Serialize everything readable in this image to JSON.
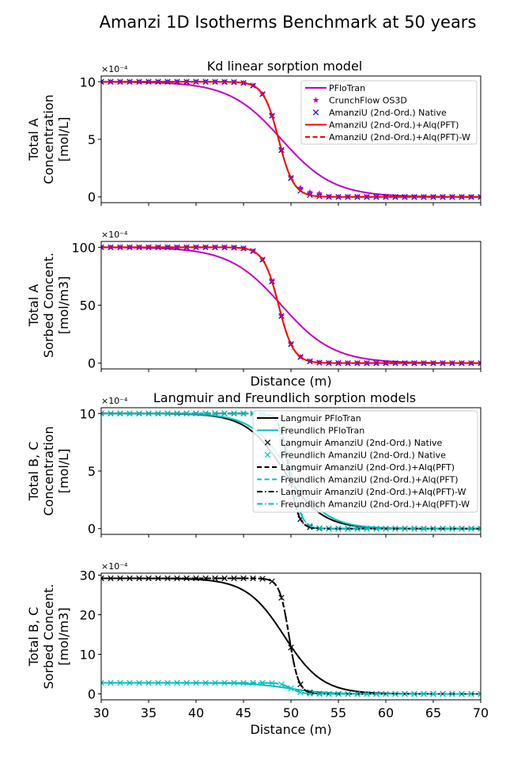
{
  "figure": {
    "suptitle": "Amanzi 1D Isotherms Benchmark at 50 years"
  },
  "chart_data": [
    {
      "type": "line",
      "title": "Kd linear sorption model",
      "ylabel": [
        "Total A",
        "Concentration",
        "[mol/L]"
      ],
      "xlabel": "",
      "exponent_label": "×10⁻⁴",
      "xlim": [
        30,
        70
      ],
      "ylim": [
        -0.5,
        10.5
      ],
      "yticks": [
        0,
        5,
        10
      ],
      "xticks": [
        30,
        35,
        40,
        45,
        50,
        55,
        60,
        65,
        70
      ],
      "show_xticklabels": false,
      "legend": "top-right",
      "series": [
        {
          "name": "PFloTran",
          "kind": "line",
          "color": "#bf00bf",
          "dash": "solid",
          "x0": 49.0,
          "w": 5.5,
          "ymax": 10,
          "ymin": 0
        },
        {
          "name": "CrunchFlow OS3D",
          "kind": "marker",
          "marker": "star",
          "color": "#bf00bf",
          "x0": 48.7,
          "w": 1.6,
          "ymax": 10,
          "ymin": 0,
          "tail": 0.25
        },
        {
          "name": "AmanziU (2nd-Ord.) Native",
          "kind": "marker",
          "marker": "x",
          "color": "#0000ff",
          "x0": 48.7,
          "w": 1.6,
          "ymax": 10,
          "ymin": 0
        },
        {
          "name": "AmanziU (2nd-Ord.)+Alq(PFT)",
          "kind": "line",
          "color": "#ff0000",
          "dash": "solid",
          "x0": 48.7,
          "w": 1.6,
          "ymax": 10,
          "ymin": 0
        },
        {
          "name": "AmanziU (2nd-Ord.)+Alq(PFT)-W",
          "kind": "line",
          "color": "#ff0000",
          "dash": "dashed",
          "x0": 48.7,
          "w": 1.6,
          "ymax": 10,
          "ymin": 0
        }
      ]
    },
    {
      "type": "line",
      "title": "",
      "ylabel": [
        "Total A",
        "Sorbed Concent.",
        "[mol/m3]"
      ],
      "xlabel": "Distance (m)",
      "exponent_label": "×10⁻⁴",
      "xlim": [
        30,
        70
      ],
      "ylim": [
        -5,
        105
      ],
      "yticks": [
        0,
        50,
        100
      ],
      "xticks": [
        30,
        35,
        40,
        45,
        50,
        55,
        60,
        65,
        70
      ],
      "show_xticklabels": false,
      "legend": "none",
      "series": [
        {
          "name": "",
          "kind": "line",
          "color": "#bf00bf",
          "dash": "solid",
          "x0": 49.0,
          "w": 5.5,
          "ymax": 100,
          "ymin": 0
        },
        {
          "name": "",
          "kind": "marker",
          "marker": "star",
          "color": "#bf00bf",
          "x0": 48.7,
          "w": 1.6,
          "ymax": 100,
          "ymin": 0
        },
        {
          "name": "",
          "kind": "marker",
          "marker": "x",
          "color": "#0000ff",
          "x0": 48.7,
          "w": 1.6,
          "ymax": 100,
          "ymin": 0
        },
        {
          "name": "",
          "kind": "line",
          "color": "#ff0000",
          "dash": "solid",
          "x0": 48.7,
          "w": 1.6,
          "ymax": 100,
          "ymin": 0
        },
        {
          "name": "",
          "kind": "line",
          "color": "#ff0000",
          "dash": "dashed",
          "x0": 48.7,
          "w": 1.6,
          "ymax": 100,
          "ymin": 0
        }
      ]
    },
    {
      "type": "line",
      "title": "Langmuir and Freundlich sorption models",
      "ylabel": [
        "Total B, C",
        "Concentration",
        "[mol/L]"
      ],
      "xlabel": "",
      "exponent_label": "×10⁻⁴",
      "xlim": [
        30,
        70
      ],
      "ylim": [
        -0.5,
        10.5
      ],
      "yticks": [
        0,
        5,
        10
      ],
      "xticks": [
        30,
        35,
        40,
        45,
        50,
        55,
        60,
        65,
        70
      ],
      "show_xticklabels": false,
      "legend": "top-right",
      "series": [
        {
          "name": "Langmuir PFloTran",
          "kind": "line",
          "color": "#000000",
          "dash": "solid",
          "x0": 49.3,
          "w": 4.0,
          "ymax": 10,
          "ymin": 0
        },
        {
          "name": "Freundlich PFloTran",
          "kind": "line",
          "color": "#00bfbf",
          "dash": "solid",
          "x0": 49.8,
          "w": 4.0,
          "ymax": 10,
          "ymin": 0
        },
        {
          "name": "Langmuir AmanziU (2nd-Ord.) Native",
          "kind": "marker",
          "marker": "x",
          "color": "#000000",
          "x0": 49.8,
          "w": 1.0,
          "ymax": 10,
          "ymin": 0
        },
        {
          "name": "Freundlich AmanziU (2nd-Ord.) Native",
          "kind": "marker",
          "marker": "x",
          "color": "#00bfbf",
          "x0": 50.0,
          "w": 1.1,
          "ymax": 10,
          "ymin": 0
        },
        {
          "name": "Langmuir AmanziU (2nd-Ord.)+Alq(PFT)",
          "kind": "line",
          "color": "#000000",
          "dash": "dashed",
          "x0": 49.8,
          "w": 1.0,
          "ymax": 10,
          "ymin": 0
        },
        {
          "name": "Freundlich AmanziU (2nd-Ord.)+Alq(PFT)",
          "kind": "line",
          "color": "#00bfbf",
          "dash": "dashed",
          "x0": 50.0,
          "w": 1.1,
          "ymax": 10,
          "ymin": 0
        },
        {
          "name": "Langmuir AmanziU (2nd-Ord.)+Alq(PFT)-W",
          "kind": "line",
          "color": "#000000",
          "dash": "dashdot",
          "x0": 49.8,
          "w": 1.0,
          "ymax": 10,
          "ymin": 0
        },
        {
          "name": "Freundlich AmanziU (2nd-Ord.)+Alq(PFT)-W",
          "kind": "line",
          "color": "#00bfbf",
          "dash": "dashdot",
          "x0": 50.0,
          "w": 1.1,
          "ymax": 10,
          "ymin": 0
        }
      ]
    },
    {
      "type": "line",
      "title": "",
      "ylabel": [
        "Total B, C",
        "Sorbed Concent.",
        "[mol/m3]"
      ],
      "xlabel": "Distance (m)",
      "exponent_label": "×10⁻⁴",
      "xlim": [
        30,
        70
      ],
      "ylim": [
        -1.5,
        30.5
      ],
      "yticks": [
        0,
        10,
        20,
        30
      ],
      "xticks": [
        30,
        35,
        40,
        45,
        50,
        55,
        60,
        65,
        70
      ],
      "show_xticklabels": true,
      "legend": "none",
      "series": [
        {
          "name": "",
          "kind": "line",
          "color": "#000000",
          "dash": "solid",
          "x0": 49.3,
          "w": 4.0,
          "ymax": 29.2,
          "ymin": 0
        },
        {
          "name": "",
          "kind": "line",
          "color": "#00bfbf",
          "dash": "solid",
          "x0": 49.8,
          "w": 4.0,
          "ymax": 2.8,
          "ymin": 0
        },
        {
          "name": "",
          "kind": "marker",
          "marker": "x",
          "color": "#000000",
          "x0": 49.8,
          "w": 1.0,
          "ymax": 29.2,
          "ymin": 0
        },
        {
          "name": "",
          "kind": "marker",
          "marker": "x",
          "color": "#00bfbf",
          "x0": 50.0,
          "w": 1.1,
          "ymax": 2.8,
          "ymin": 0
        },
        {
          "name": "",
          "kind": "line",
          "color": "#000000",
          "dash": "dashed",
          "x0": 49.8,
          "w": 1.0,
          "ymax": 29.2,
          "ymin": 0
        },
        {
          "name": "",
          "kind": "line",
          "color": "#00bfbf",
          "dash": "dashed",
          "x0": 50.0,
          "w": 1.1,
          "ymax": 2.8,
          "ymin": 0
        },
        {
          "name": "",
          "kind": "line",
          "color": "#000000",
          "dash": "dashdot",
          "x0": 49.8,
          "w": 1.0,
          "ymax": 29.2,
          "ymin": 0
        },
        {
          "name": "",
          "kind": "line",
          "color": "#00bfbf",
          "dash": "dashdot",
          "x0": 50.0,
          "w": 1.1,
          "ymax": 2.8,
          "ymin": 0
        }
      ]
    }
  ]
}
